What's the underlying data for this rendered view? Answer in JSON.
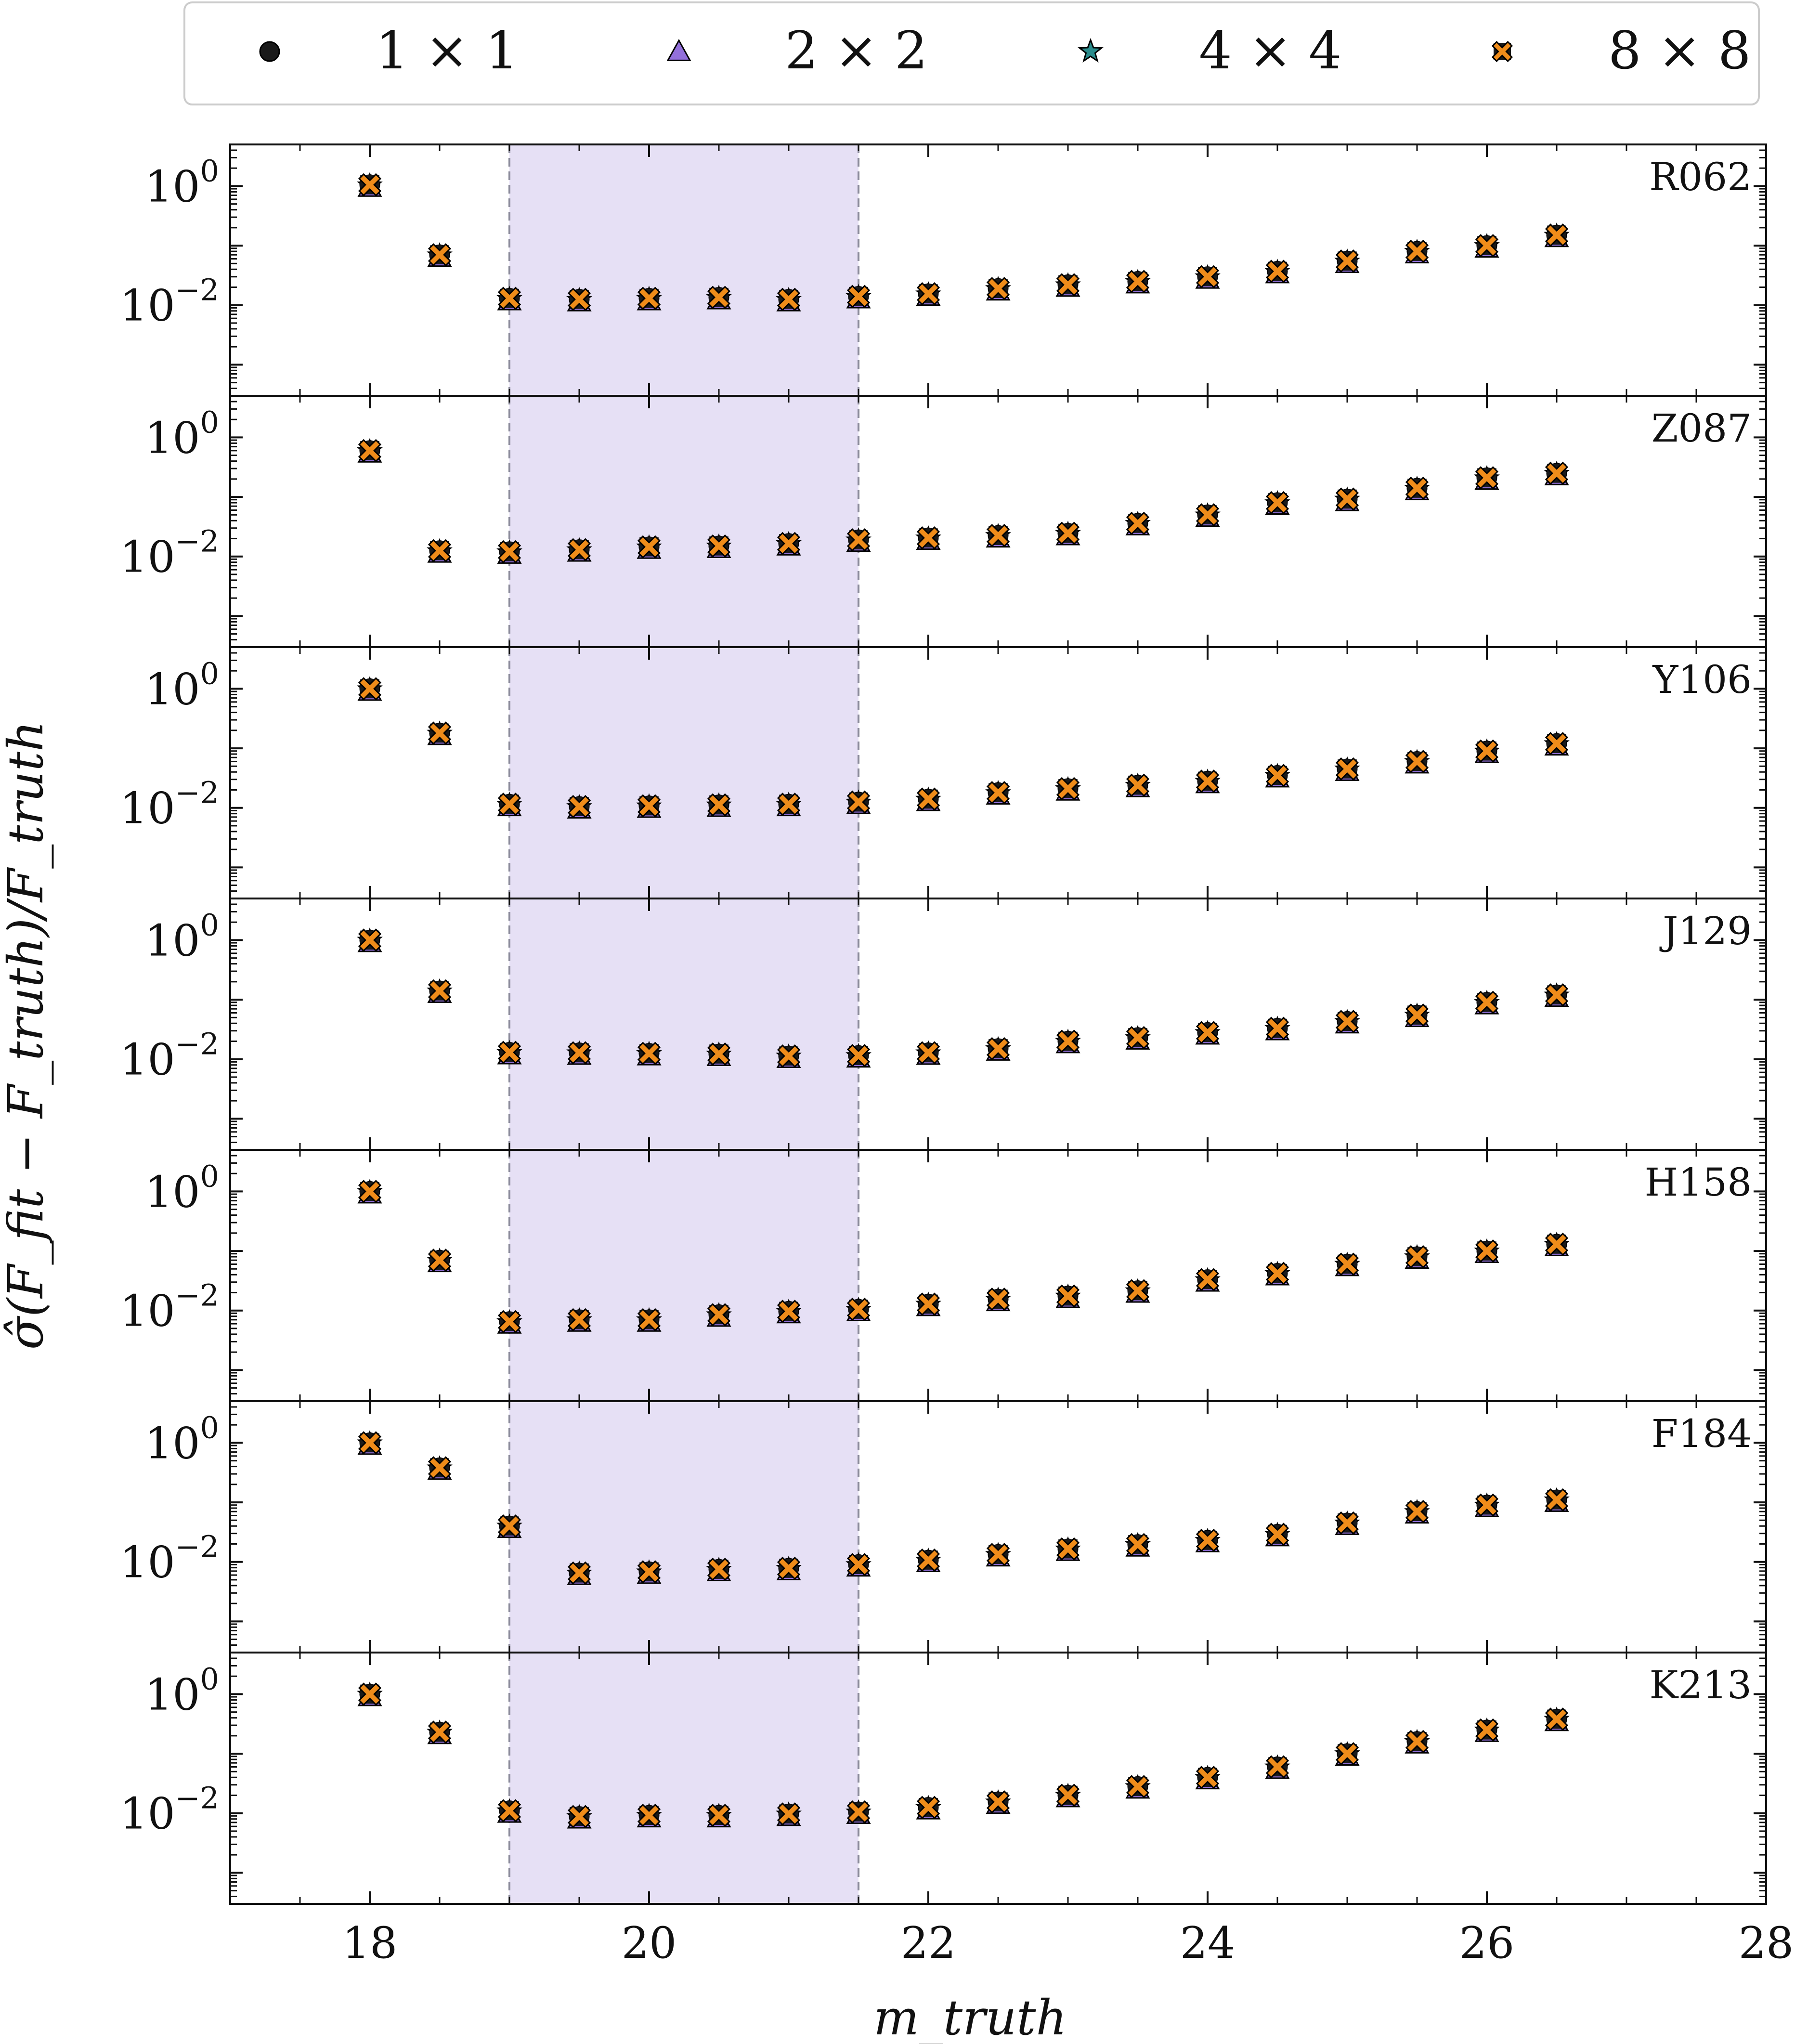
{
  "chart_data": {
    "type": "scatter",
    "xlabel": "m_truth",
    "ylabel": "σ̂(F_fit − F_truth)/F_truth",
    "xlim": [
      17,
      28
    ],
    "x_ticks": [
      "18",
      "20",
      "22",
      "24",
      "26",
      "28"
    ],
    "y_scale": "log",
    "ylim": [
      0.0003,
      5
    ],
    "y_ticks": [
      {
        "base": "10",
        "exp": "0",
        "value": 1
      },
      {
        "base": "10",
        "exp": "−2",
        "value": 0.01
      }
    ],
    "shaded_region": [
      19,
      21.5
    ],
    "legend": {
      "placement": "top",
      "entries": [
        {
          "label": "1 × 1",
          "marker": "circle",
          "color": "#1a1a1a"
        },
        {
          "label": "2 × 2",
          "marker": "triangle",
          "color": "#9370DB"
        },
        {
          "label": "4 × 4",
          "marker": "star",
          "color": "#2a8c8c"
        },
        {
          "label": "8 × 8",
          "marker": "x-square",
          "color": "#ef8c1a"
        }
      ]
    },
    "x": [
      18,
      18.5,
      19,
      19.5,
      20,
      20.5,
      21,
      21.5,
      22,
      22.5,
      23,
      23.5,
      24,
      24.5,
      25,
      25.5,
      26,
      26.5
    ],
    "panels": [
      {
        "name": "R062",
        "values": [
          1.05,
          0.07,
          0.013,
          0.0125,
          0.013,
          0.0135,
          0.0125,
          0.014,
          0.0155,
          0.019,
          0.022,
          0.025,
          0.03,
          0.037,
          0.055,
          0.08,
          0.1,
          0.15
        ]
      },
      {
        "name": "Z087",
        "values": [
          0.6,
          0.0125,
          0.012,
          0.013,
          0.0145,
          0.015,
          0.0165,
          0.019,
          0.0205,
          0.0225,
          0.0245,
          0.036,
          0.05,
          0.08,
          0.092,
          0.14,
          0.21,
          0.25
        ]
      },
      {
        "name": "Y106",
        "values": [
          1.0,
          0.18,
          0.0115,
          0.0105,
          0.0108,
          0.0112,
          0.0115,
          0.0125,
          0.014,
          0.018,
          0.021,
          0.024,
          0.028,
          0.035,
          0.045,
          0.06,
          0.09,
          0.12
        ]
      },
      {
        "name": "J129",
        "values": [
          1.0,
          0.14,
          0.013,
          0.0128,
          0.0125,
          0.0122,
          0.0113,
          0.0115,
          0.0128,
          0.015,
          0.02,
          0.023,
          0.028,
          0.033,
          0.043,
          0.055,
          0.09,
          0.12
        ]
      },
      {
        "name": "H158",
        "values": [
          1.0,
          0.07,
          0.0065,
          0.007,
          0.007,
          0.0085,
          0.0097,
          0.0105,
          0.0128,
          0.0155,
          0.0175,
          0.0215,
          0.033,
          0.042,
          0.06,
          0.08,
          0.1,
          0.13
        ]
      },
      {
        "name": "F184",
        "values": [
          1.0,
          0.38,
          0.04,
          0.0065,
          0.0068,
          0.0075,
          0.0078,
          0.009,
          0.0107,
          0.0133,
          0.0165,
          0.0195,
          0.023,
          0.029,
          0.045,
          0.07,
          0.09,
          0.11
        ]
      },
      {
        "name": "K213",
        "values": [
          1.0,
          0.23,
          0.011,
          0.0088,
          0.0092,
          0.0092,
          0.0097,
          0.0105,
          0.0125,
          0.0155,
          0.02,
          0.028,
          0.04,
          0.06,
          0.1,
          0.16,
          0.25,
          0.38
        ]
      }
    ]
  }
}
